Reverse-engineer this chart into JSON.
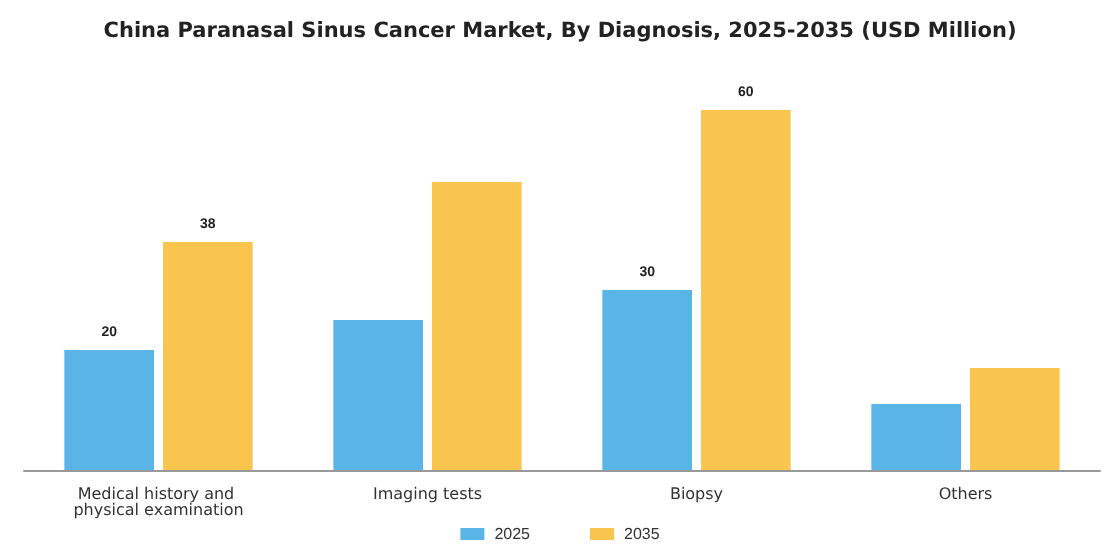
{
  "chart_data": {
    "type": "bar",
    "title": "China Paranasal Sinus Cancer Market, By Diagnosis, 2025-2035 (USD Million)",
    "categories": [
      "Medical history and physical examination",
      "Imaging tests",
      "Biopsy",
      "Others"
    ],
    "series": [
      {
        "name": "2025",
        "color": "#5ab4e6",
        "values": [
          20,
          25,
          30,
          11
        ],
        "value_labels": [
          "20",
          null,
          "30",
          null
        ]
      },
      {
        "name": "2035",
        "color": "#f9c54e",
        "values": [
          38,
          48,
          60,
          17
        ],
        "value_labels": [
          "38",
          null,
          "60",
          null
        ]
      }
    ],
    "legend": "bottom"
  }
}
